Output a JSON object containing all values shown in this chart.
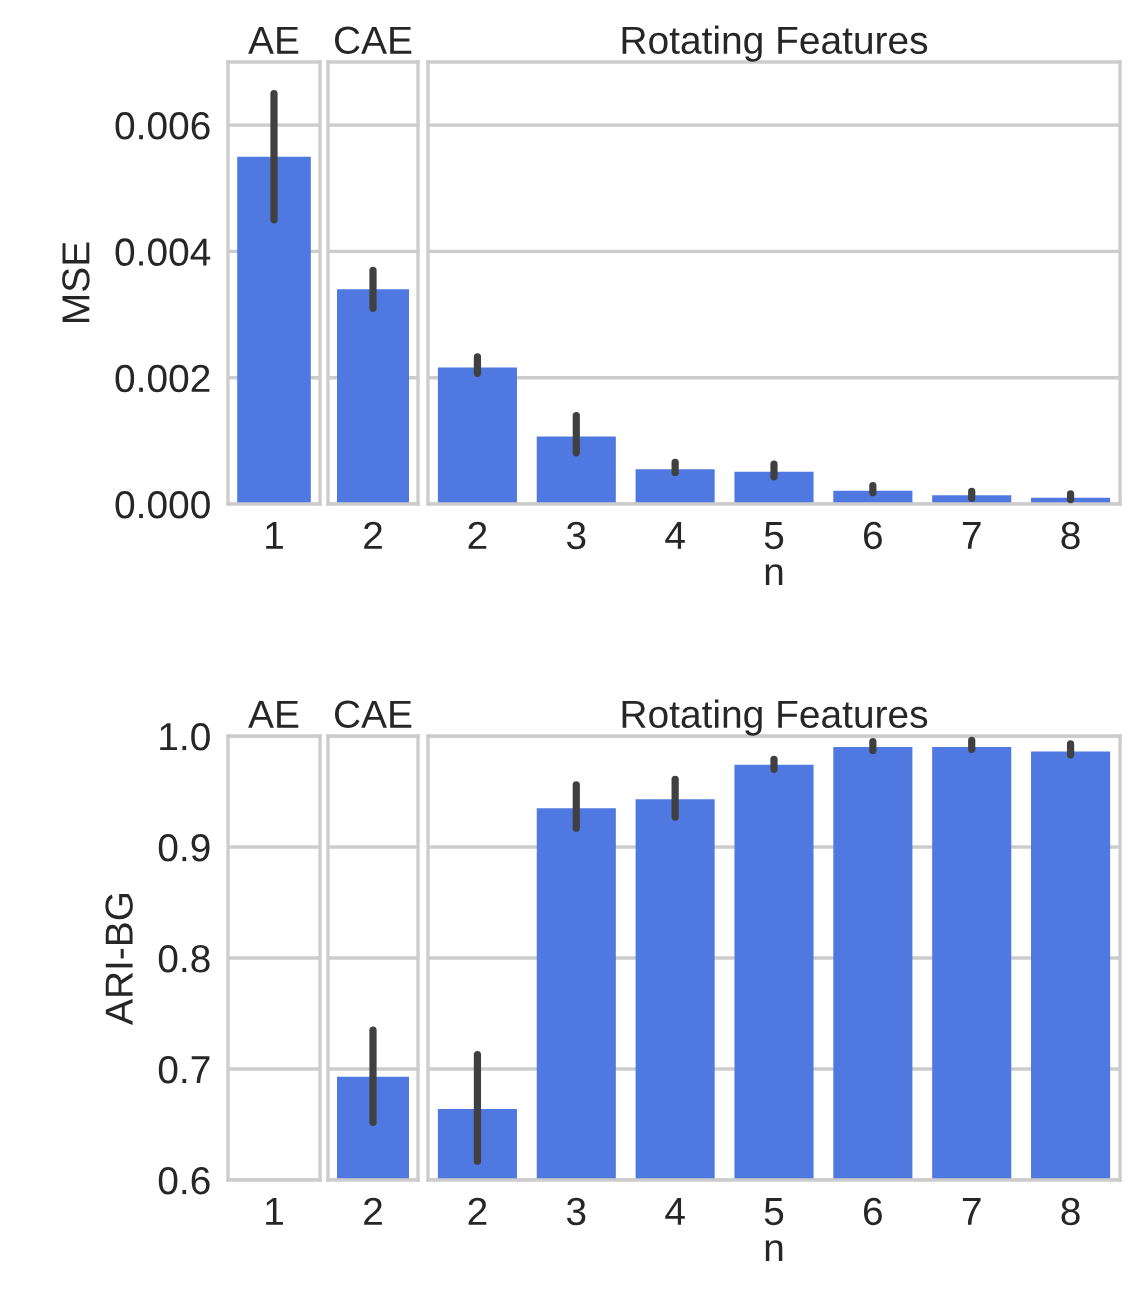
{
  "chart_data": [
    {
      "type": "bar",
      "title": "AE",
      "ylabel": "MSE",
      "categories": [
        "1"
      ],
      "values": [
        0.0055
      ],
      "errors": [
        [
          0.0045,
          0.0065
        ]
      ],
      "color": "#4f78e1",
      "ylim": [
        0,
        0.007
      ],
      "yticks": [
        {
          "value": 0,
          "label": "0.000"
        },
        {
          "value": 0.002,
          "label": "0.002"
        },
        {
          "value": 0.004,
          "label": "0.004"
        },
        {
          "value": 0.006,
          "label": "0.006"
        }
      ],
      "grid": "y"
    },
    {
      "type": "bar",
      "title": "CAE",
      "categories": [
        "2"
      ],
      "values": [
        0.0034
      ],
      "errors": [
        [
          0.0031,
          0.0037
        ]
      ],
      "color": "#4f78e1",
      "ylim": [
        0,
        0.007
      ],
      "yticks": [
        0,
        0.002,
        0.004,
        0.006
      ],
      "grid": "y",
      "tick_labels": "x"
    },
    {
      "type": "bar",
      "title": "Rotating Features",
      "xlabel": "n",
      "categories": [
        "2",
        "3",
        "4",
        "5",
        "6",
        "7",
        "8"
      ],
      "values": [
        0.00216,
        0.00107,
        0.00055,
        0.00051,
        0.00021,
        0.00014,
        0.0001
      ],
      "errors": [
        [
          0.00207,
          0.00233
        ],
        [
          0.00081,
          0.0014
        ],
        [
          0.0005,
          0.00066
        ],
        [
          0.00043,
          0.00063
        ],
        [
          0.00018,
          0.00029
        ],
        [
          9e-05,
          0.0002
        ],
        [
          7e-05,
          0.00016
        ]
      ],
      "color": "#4f78e1",
      "ylim": [
        0,
        0.007
      ],
      "yticks": [
        0,
        0.002,
        0.004,
        0.006
      ],
      "grid": "y",
      "tick_labels": "x"
    },
    {
      "type": "bar",
      "title": "AE",
      "ylabel": "ARI-BG",
      "categories": [
        "1"
      ],
      "values": [
        null
      ],
      "errors": [
        null
      ],
      "color": "#4f78e1",
      "ylim": [
        0.6,
        1.0
      ],
      "yticks": [
        0.6,
        0.7,
        0.8,
        0.9,
        {
          "value": 1,
          "label": "1.0"
        }
      ],
      "grid": "y"
    },
    {
      "type": "bar",
      "title": "CAE",
      "categories": [
        "2"
      ],
      "values": [
        0.693
      ],
      "errors": [
        [
          0.652,
          0.735
        ]
      ],
      "color": "#4f78e1",
      "ylim": [
        0.6,
        1.0
      ],
      "yticks": [
        0.6,
        0.7,
        0.8,
        0.9,
        1.0
      ],
      "grid": "y",
      "tick_labels": "x"
    },
    {
      "type": "bar",
      "title": "Rotating Features",
      "xlabel": "n",
      "categories": [
        "2",
        "3",
        "4",
        "5",
        "6",
        "7",
        "8"
      ],
      "values": [
        0.664,
        0.935,
        0.943,
        0.974,
        0.99,
        0.99,
        0.986
      ],
      "errors": [
        [
          0.617,
          0.713
        ],
        [
          0.917,
          0.956
        ],
        [
          0.927,
          0.961
        ],
        [
          0.97,
          0.979
        ],
        [
          0.987,
          0.995
        ],
        [
          0.988,
          0.996
        ],
        [
          0.983,
          0.993
        ]
      ],
      "color": "#4f78e1",
      "ylim": [
        0.6,
        1.0
      ],
      "yticks": [
        0.6,
        0.7,
        0.8,
        0.9,
        1.0
      ],
      "grid": "y",
      "tick_labels": "x"
    }
  ]
}
